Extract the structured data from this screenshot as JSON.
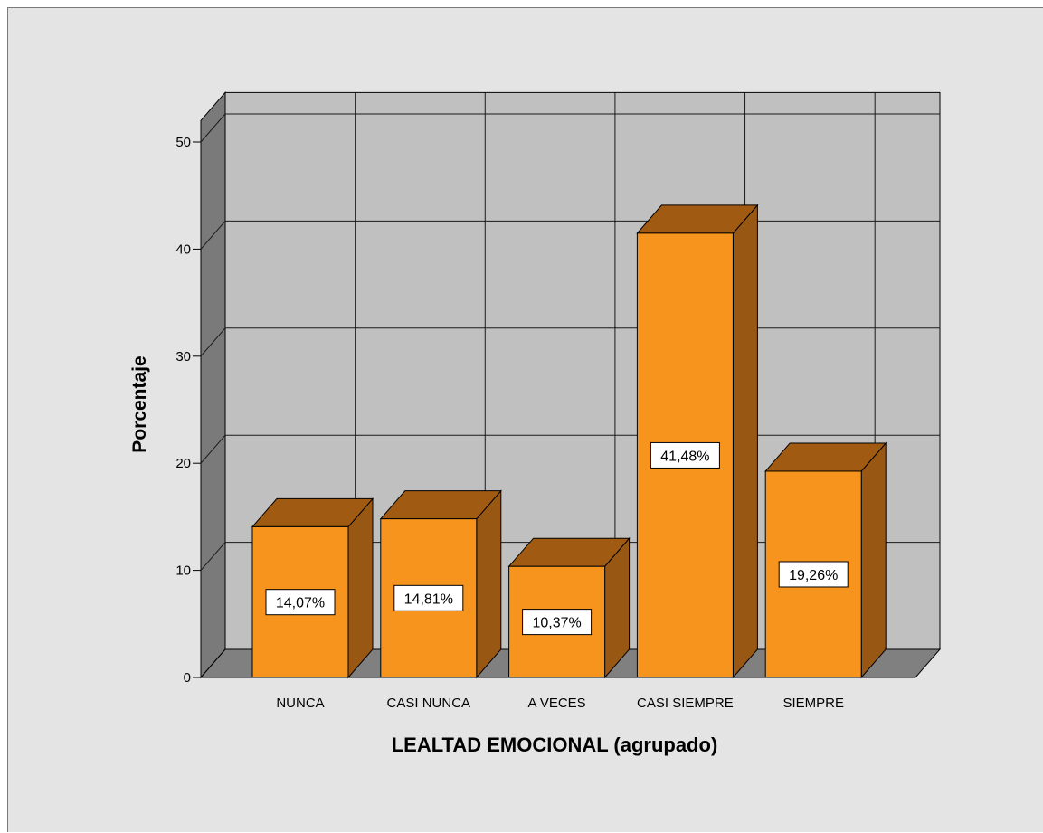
{
  "chart_data": {
    "type": "bar",
    "style": "3d",
    "title": "",
    "xlabel": "LEALTAD EMOCIONAL (agrupado)",
    "ylabel": "Porcentaje",
    "categories": [
      "NUNCA",
      "CASI NUNCA",
      "A VECES",
      "CASI SIEMPRE",
      "SIEMPRE"
    ],
    "values": [
      14.07,
      14.81,
      10.37,
      41.48,
      19.26
    ],
    "data_labels": [
      "14,07%",
      "14,81%",
      "10,37%",
      "41,48%",
      "19,26%"
    ],
    "ylim": [
      0,
      52
    ],
    "yticks": [
      0,
      10,
      20,
      30,
      40,
      50
    ],
    "ytick_labels": [
      "0",
      "10",
      "20",
      "30",
      "40",
      "50"
    ],
    "grid": true,
    "legend": "none",
    "colors": {
      "background": "#e4e4e4",
      "plot_back_wall": "#c0c0c0",
      "plot_side_wall": "#7a7a7a",
      "floor": "#808080",
      "bar_front": "#f7941e",
      "bar_top": "#a05a12",
      "bar_side": "#985713",
      "label_box": "#ffffff",
      "grid_line": "#1a1a1a"
    }
  }
}
